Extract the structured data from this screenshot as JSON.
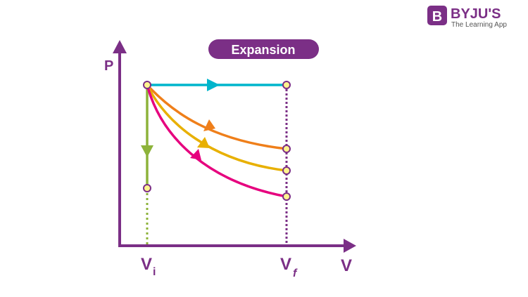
{
  "logo": {
    "brand": "BYJU'S",
    "tagline": "The Learning App"
  },
  "title": "Expansion",
  "axes": {
    "y": "P",
    "x": "V"
  },
  "ticks": {
    "vi": {
      "main": "V",
      "sub": "i"
    },
    "vf": {
      "main": "V",
      "sub": "f"
    }
  },
  "colors": {
    "axis": "#7b2f86",
    "isobaric": "#00b5cc",
    "isochoric": "#8db33a",
    "curve1": "#ef7f1a",
    "curve2": "#e8b000",
    "curve3": "#e6007e",
    "point": "#fff48f"
  }
}
